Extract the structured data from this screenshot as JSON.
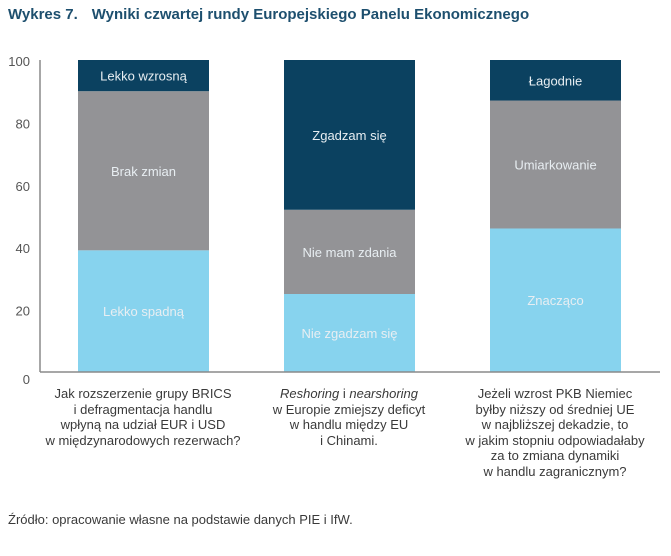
{
  "title": {
    "number": "Wykres 7.",
    "text": "Wyniki czwartej rundy Europejskiego Panelu Ekonomicznego"
  },
  "source": "Źródło: opracowanie własne na podstawie danych PIE i IfW.",
  "chart_data": {
    "type": "bar",
    "stacked": true,
    "ylim": [
      0,
      100
    ],
    "yticks": [
      "0",
      "20",
      "40",
      "60",
      "80",
      "100"
    ],
    "colors": {
      "bottom": "#87d3ee",
      "middle": "#939396",
      "top": "#0b4160"
    },
    "categories": [
      {
        "lines": [
          [
            {
              "t": "Jak rozszerzenie grupy BRICS",
              "i": false
            }
          ],
          [
            {
              "t": "i defragmentacja handlu",
              "i": false
            }
          ],
          [
            {
              "t": "wpłyną na udział EUR i USD",
              "i": false
            }
          ],
          [
            {
              "t": "w międzynarodowych rezerwach?",
              "i": false
            }
          ]
        ],
        "segments": [
          {
            "label": "Lekko spadną",
            "value": 39,
            "color": "#87d3ee"
          },
          {
            "label": "Brak zmian",
            "value": 51,
            "color": "#939396"
          },
          {
            "label": "Lekko wzrosną",
            "value": 10,
            "color": "#0b4160"
          }
        ]
      },
      {
        "lines": [
          [
            {
              "t": "Reshoring",
              "i": true
            },
            {
              "t": " i ",
              "i": false
            },
            {
              "t": "nearshoring",
              "i": true
            }
          ],
          [
            {
              "t": "w Europie zmiejszy deficyt",
              "i": false
            }
          ],
          [
            {
              "t": "w handlu między EU",
              "i": false
            }
          ],
          [
            {
              "t": "i Chinami.",
              "i": false
            }
          ]
        ],
        "segments": [
          {
            "label": "Nie zgadzam się",
            "value": 25,
            "color": "#87d3ee"
          },
          {
            "label": "Nie mam zdania",
            "value": 27,
            "color": "#939396"
          },
          {
            "label": "Zgadzam się",
            "value": 48,
            "color": "#0b4160"
          }
        ]
      },
      {
        "lines": [
          [
            {
              "t": "Jeżeli wzrost PKB Niemiec",
              "i": false
            }
          ],
          [
            {
              "t": "byłby niższy od średniej UE",
              "i": false
            }
          ],
          [
            {
              "t": "w najbliższej dekadzie, to",
              "i": false
            }
          ],
          [
            {
              "t": "w jakim stopniu odpowiadałaby",
              "i": false
            }
          ],
          [
            {
              "t": "za to zmiana dynamiki",
              "i": false
            }
          ],
          [
            {
              "t": "w handlu zagranicznym?",
              "i": false
            }
          ]
        ],
        "segments": [
          {
            "label": "Znacząco",
            "value": 46,
            "color": "#87d3ee"
          },
          {
            "label": "Umiarkowanie",
            "value": 41,
            "color": "#939396"
          },
          {
            "label": "Łagodnie",
            "value": 13,
            "color": "#0b4160"
          }
        ]
      }
    ]
  }
}
